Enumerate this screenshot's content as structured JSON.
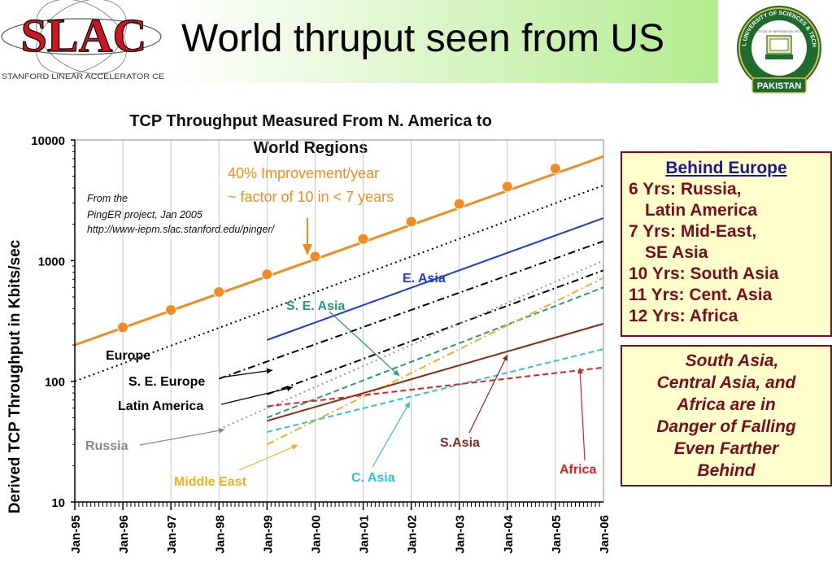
{
  "header": {
    "title": "World thruput seen from US",
    "slac_logo_text": "SLAC",
    "slac_logo_subtitle": "STANFORD LINEAR ACCELERATOR CE",
    "nust_logo_top": "NATIONAL UNIVERSITY OF SCIENCES & TECHNOLOGY",
    "nust_logo_inner": "NUST INSTITUTE OF INFORMATION TECHNOLOGY",
    "nust_logo_bottom": "PAKISTAN"
  },
  "colors": {
    "improvement": "#f08c1e",
    "e_asia": "#1a3ad0",
    "se_asia": "#2a9a76",
    "middle_east": "#f0b020",
    "russia": "#999999",
    "c_asia": "#30c0d8",
    "s_asia": "#8b2a10",
    "africa": "#e02020",
    "dark_red": "#7a0c1e"
  },
  "chart_data": {
    "type": "line",
    "title": "TCP Throughput Measured From N. America to World Regions",
    "xlabel": "",
    "ylabel": "Derived TCP Throughput in Kbits/sec",
    "yscale": "log",
    "ylim": [
      10,
      10000
    ],
    "xlim": [
      "Jan-95",
      "Jan-06"
    ],
    "x_ticks": [
      "Jan-95",
      "Jan-96",
      "Jan-97",
      "Jan-98",
      "Jan-99",
      "Jan-00",
      "Jan-01",
      "Jan-02",
      "Jan-03",
      "Jan-04",
      "Jan-05",
      "Jan-06"
    ],
    "y_ticks": [
      "10",
      "100",
      "1000",
      "10000"
    ],
    "annotations": {
      "improvement_line1": "40% Improvement/year",
      "improvement_line2": "~ factor of 10 in < 7 years",
      "source_line1": "From the",
      "source_line2": "PingER project, Jan 2005",
      "source_line3": "http://www-iepm.slac.stanford.edu/pinger/"
    },
    "series": [
      {
        "name": "40% Improvement/year",
        "style": "line-markers",
        "color": "#f08c1e",
        "points": [
          [
            "Jan-95",
            200
          ],
          [
            "Jan-06",
            7300
          ]
        ],
        "markers": [
          [
            "Jan-96",
            280
          ],
          [
            "Jan-97",
            390
          ],
          [
            "Jan-98",
            550
          ],
          [
            "Jan-99",
            770
          ],
          [
            "Jan-00",
            1080
          ],
          [
            "Jan-01",
            1510
          ],
          [
            "Jan-02",
            2100
          ],
          [
            "Jan-03",
            2950
          ],
          [
            "Jan-04",
            4100
          ],
          [
            "Jan-05",
            5800
          ]
        ]
      },
      {
        "name": "Europe",
        "style": "dotted",
        "color": "#000000",
        "points": [
          [
            "Jan-95",
            100
          ],
          [
            "Jan-06",
            4200
          ]
        ]
      },
      {
        "name": "S. E. Europe",
        "style": "dashdot",
        "color": "#000000",
        "points": [
          [
            "Jan-98",
            105
          ],
          [
            "Jan-06",
            1450
          ]
        ]
      },
      {
        "name": "Latin America",
        "style": "dashdot",
        "color": "#000000",
        "points": [
          [
            "Jan-99",
            78
          ],
          [
            "Jan-06",
            830
          ]
        ]
      },
      {
        "name": "Russia",
        "style": "dotted",
        "color": "#999999",
        "points": [
          [
            "Jan-98",
            40
          ],
          [
            "Jan-06",
            1000
          ]
        ]
      },
      {
        "name": "E. Asia",
        "style": "solid",
        "color": "#1a3ad0",
        "points": [
          [
            "Jan-99",
            220
          ],
          [
            "Jan-06",
            2250
          ]
        ]
      },
      {
        "name": "S. E. Asia",
        "style": "dashed",
        "color": "#2a9a76",
        "points": [
          [
            "Jan-99",
            50
          ],
          [
            "Jan-06",
            600
          ]
        ]
      },
      {
        "name": "Middle East",
        "style": "dashdot",
        "color": "#f0b020",
        "points": [
          [
            "Jan-99",
            30
          ],
          [
            "Jan-06",
            720
          ]
        ]
      },
      {
        "name": "S.Asia",
        "style": "solid",
        "color": "#8b2a10",
        "points": [
          [
            "Jan-99",
            47
          ],
          [
            "Jan-06",
            300
          ]
        ]
      },
      {
        "name": "C. Asia",
        "style": "dashed",
        "color": "#30c0d8",
        "points": [
          [
            "Jan-99",
            38
          ],
          [
            "Jan-06",
            185
          ]
        ]
      },
      {
        "name": "Africa",
        "style": "dashed",
        "color": "#e02020",
        "points": [
          [
            "Jan-99",
            62
          ],
          [
            "Jan-06",
            130
          ]
        ]
      }
    ]
  },
  "behind_europe": {
    "heading": "Behind Europe",
    "lines": [
      "6 Yrs: Russia,",
      "   Latin America",
      "7 Yrs: Mid-East,",
      "   SE Asia",
      "10 Yrs: South Asia",
      "11 Yrs: Cent. Asia",
      "12 Yrs: Africa"
    ]
  },
  "danger_note": {
    "lines": [
      "South Asia,",
      "Central Asia, and",
      "Africa are in",
      "Danger of Falling",
      "Even Farther",
      "Behind"
    ]
  }
}
